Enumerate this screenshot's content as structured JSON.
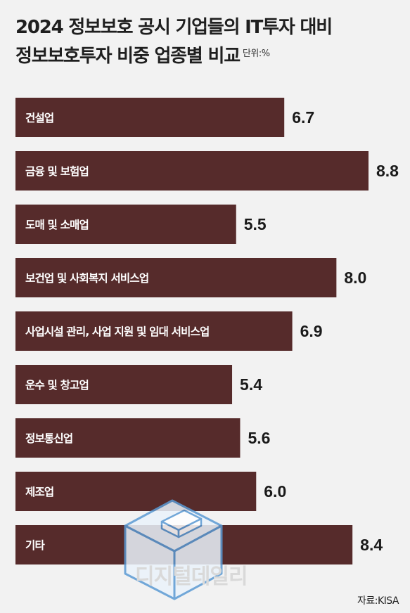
{
  "title": {
    "line1": "2024 정보보호 공시 기업들의 IT투자 대비",
    "line2": "정보보호투자 비중 업종별 비교",
    "unit": "단위:%"
  },
  "source": "자료:KISA",
  "watermark": "디지털데일리",
  "colors": {
    "bar": "#562b2b",
    "label_text": "#ffffff",
    "value_text": "#1a1a1a",
    "background": "#f2f2f2"
  },
  "chart_data": {
    "type": "bar",
    "orientation": "horizontal",
    "categories": [
      "건설업",
      "금융 및 보험업",
      "도매 및 소매업",
      "보건업 및 사회복지 서비스업",
      "사업시설 관리, 사업 지원 및 임대 서비스업",
      "운수 및 창고업",
      "정보통신업",
      "제조업",
      "기타"
    ],
    "values": [
      6.7,
      8.8,
      5.5,
      8.0,
      6.9,
      5.4,
      5.6,
      6.0,
      8.4
    ],
    "value_labels": [
      "6.7",
      "8.8",
      "5.5",
      "8.0",
      "6.9",
      "5.4",
      "5.6",
      "6.0",
      "8.4"
    ],
    "xlim": [
      0,
      8.8
    ],
    "grid": false,
    "legend": "none"
  }
}
